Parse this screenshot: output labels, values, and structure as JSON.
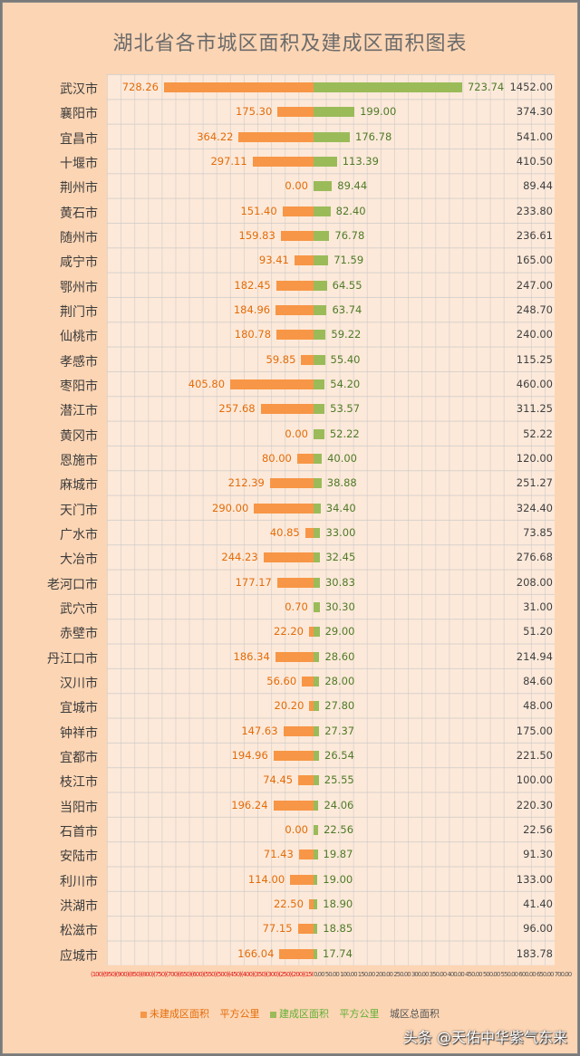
{
  "chart": {
    "title": "湖北省各市城区面积及建成区面积图表",
    "legend": [
      {
        "label": "未建成区面积",
        "color": "#f79646",
        "text_color": "#e36c09",
        "swatch": true
      },
      {
        "label": "平方公里",
        "color": "#f79646",
        "text_color": "#e36c09",
        "swatch": false
      },
      {
        "label": "建成区面积",
        "color": "#9bbb59",
        "text_color": "#5fb035",
        "swatch": true
      },
      {
        "label": "平方公里",
        "color": "#9bbb59",
        "text_color": "#5fb035",
        "swatch": false
      },
      {
        "label": "城区总面积",
        "color": "#555555",
        "text_color": "#555555",
        "swatch": false
      }
    ],
    "axis_neg_text": "(100)(950)(900)(850)(800)(750)(700)(650)(600)(550)(500)(450)(400)(350)(300)(250)(200)(150)(100)(50)",
    "axis_pos_text": "0.00 50.00 100.00 150.00 200.00 250.00 300.00 350.00 400.00 450.00 500.00 550.00 600.00 650.00 700.00 750.00 800.00 850.00 900.00 950.00 1000.00 1050.00 1100.00 1150.00 1200.00",
    "watermark": "头条 @天佑中华紫气东来"
  },
  "chart_data": {
    "type": "bar",
    "orientation": "horizontal-diverging",
    "title": "湖北省各市城区面积及建成区面积图表",
    "xlabel": "",
    "ylabel": "",
    "unit": "平方公里",
    "grid": true,
    "legend_position": "bottom",
    "categories": [
      "武汉市",
      "襄阳市",
      "宜昌市",
      "十堰市",
      "荆州市",
      "黄石市",
      "随州市",
      "咸宁市",
      "鄂州市",
      "荆门市",
      "仙桃市",
      "孝感市",
      "枣阳市",
      "潜江市",
      "黄冈市",
      "恩施市",
      "麻城市",
      "天门市",
      "广水市",
      "大冶市",
      "老河口市",
      "武穴市",
      "赤壁市",
      "丹江口市",
      "汉川市",
      "宜城市",
      "钟祥市",
      "宜都市",
      "枝江市",
      "当阳市",
      "石首市",
      "安陆市",
      "利川市",
      "洪湖市",
      "松滋市",
      "应城市"
    ],
    "series": [
      {
        "name": "未建成区面积",
        "color": "#f79646",
        "direction": "left",
        "values": [
          728.26,
          175.3,
          364.22,
          297.11,
          0.0,
          151.4,
          159.83,
          93.41,
          182.45,
          184.96,
          180.78,
          59.85,
          405.8,
          257.68,
          0.0,
          80.0,
          212.39,
          290.0,
          40.85,
          244.23,
          177.17,
          0.7,
          22.2,
          186.34,
          56.6,
          20.2,
          147.63,
          194.96,
          74.45,
          196.24,
          0.0,
          71.43,
          114.0,
          22.5,
          77.15,
          166.04
        ]
      },
      {
        "name": "建成区面积",
        "color": "#9bbb59",
        "direction": "right",
        "values": [
          723.74,
          199.0,
          176.78,
          113.39,
          89.44,
          82.4,
          76.78,
          71.59,
          64.55,
          63.74,
          59.22,
          55.4,
          54.2,
          53.57,
          52.22,
          40.0,
          38.88,
          34.4,
          33.0,
          32.45,
          30.83,
          30.3,
          29.0,
          28.6,
          28.0,
          27.8,
          27.37,
          26.54,
          25.55,
          24.06,
          22.56,
          19.87,
          19.0,
          18.9,
          18.85,
          17.74
        ]
      },
      {
        "name": "城区总面积",
        "color": "#404040",
        "type": "label",
        "values": [
          1452.0,
          374.3,
          541.0,
          410.5,
          89.44,
          233.8,
          236.61,
          165.0,
          247.0,
          248.7,
          240.0,
          115.25,
          460.0,
          311.25,
          52.22,
          120.0,
          251.27,
          324.4,
          73.85,
          276.68,
          208.0,
          31.0,
          51.2,
          214.94,
          84.6,
          48.0,
          175.0,
          221.5,
          100.0,
          220.3,
          22.56,
          91.3,
          133.0,
          41.4,
          96.0,
          183.78
        ]
      }
    ],
    "xlim": [
      -1000,
      1200
    ]
  },
  "rows": [
    {
      "city": "武汉市",
      "unbuilt": "728.26",
      "built": "723.74",
      "total": "1452.00"
    },
    {
      "city": "襄阳市",
      "unbuilt": "175.30",
      "built": "199.00",
      "total": "374.30"
    },
    {
      "city": "宜昌市",
      "unbuilt": "364.22",
      "built": "176.78",
      "total": "541.00"
    },
    {
      "city": "十堰市",
      "unbuilt": "297.11",
      "built": "113.39",
      "total": "410.50"
    },
    {
      "city": "荆州市",
      "unbuilt": "0.00",
      "built": "89.44",
      "total": "89.44"
    },
    {
      "city": "黄石市",
      "unbuilt": "151.40",
      "built": "82.40",
      "total": "233.80"
    },
    {
      "city": "随州市",
      "unbuilt": "159.83",
      "built": "76.78",
      "total": "236.61"
    },
    {
      "city": "咸宁市",
      "unbuilt": "93.41",
      "built": "71.59",
      "total": "165.00"
    },
    {
      "city": "鄂州市",
      "unbuilt": "182.45",
      "built": "64.55",
      "total": "247.00"
    },
    {
      "city": "荆门市",
      "unbuilt": "184.96",
      "built": "63.74",
      "total": "248.70"
    },
    {
      "city": "仙桃市",
      "unbuilt": "180.78",
      "built": "59.22",
      "total": "240.00"
    },
    {
      "city": "孝感市",
      "unbuilt": "59.85",
      "built": "55.40",
      "total": "115.25"
    },
    {
      "city": "枣阳市",
      "unbuilt": "405.80",
      "built": "54.20",
      "total": "460.00"
    },
    {
      "city": "潜江市",
      "unbuilt": "257.68",
      "built": "53.57",
      "total": "311.25"
    },
    {
      "city": "黄冈市",
      "unbuilt": "0.00",
      "built": "52.22",
      "total": "52.22"
    },
    {
      "city": "恩施市",
      "unbuilt": "80.00",
      "built": "40.00",
      "total": "120.00"
    },
    {
      "city": "麻城市",
      "unbuilt": "212.39",
      "built": "38.88",
      "total": "251.27"
    },
    {
      "city": "天门市",
      "unbuilt": "290.00",
      "built": "34.40",
      "total": "324.40"
    },
    {
      "city": "广水市",
      "unbuilt": "40.85",
      "built": "33.00",
      "total": "73.85"
    },
    {
      "city": "大冶市",
      "unbuilt": "244.23",
      "built": "32.45",
      "total": "276.68"
    },
    {
      "city": "老河口市",
      "unbuilt": "177.17",
      "built": "30.83",
      "total": "208.00"
    },
    {
      "city": "武穴市",
      "unbuilt": "0.70",
      "built": "30.30",
      "total": "31.00"
    },
    {
      "city": "赤壁市",
      "unbuilt": "22.20",
      "built": "29.00",
      "total": "51.20"
    },
    {
      "city": "丹江口市",
      "unbuilt": "186.34",
      "built": "28.60",
      "total": "214.94"
    },
    {
      "city": "汉川市",
      "unbuilt": "56.60",
      "built": "28.00",
      "total": "84.60"
    },
    {
      "city": "宜城市",
      "unbuilt": "20.20",
      "built": "27.80",
      "total": "48.00"
    },
    {
      "city": "钟祥市",
      "unbuilt": "147.63",
      "built": "27.37",
      "total": "175.00"
    },
    {
      "city": "宜都市",
      "unbuilt": "194.96",
      "built": "26.54",
      "total": "221.50"
    },
    {
      "city": "枝江市",
      "unbuilt": "74.45",
      "built": "25.55",
      "total": "100.00"
    },
    {
      "city": "当阳市",
      "unbuilt": "196.24",
      "built": "24.06",
      "total": "220.30"
    },
    {
      "city": "石首市",
      "unbuilt": "0.00",
      "built": "22.56",
      "total": "22.56"
    },
    {
      "city": "安陆市",
      "unbuilt": "71.43",
      "built": "19.87",
      "total": "91.30"
    },
    {
      "city": "利川市",
      "unbuilt": "114.00",
      "built": "19.00",
      "total": "133.00"
    },
    {
      "city": "洪湖市",
      "unbuilt": "22.50",
      "built": "18.90",
      "total": "41.40"
    },
    {
      "city": "松滋市",
      "unbuilt": "77.15",
      "built": "18.85",
      "total": "96.00"
    },
    {
      "city": "应城市",
      "unbuilt": "166.04",
      "built": "17.74",
      "total": "183.78"
    }
  ]
}
